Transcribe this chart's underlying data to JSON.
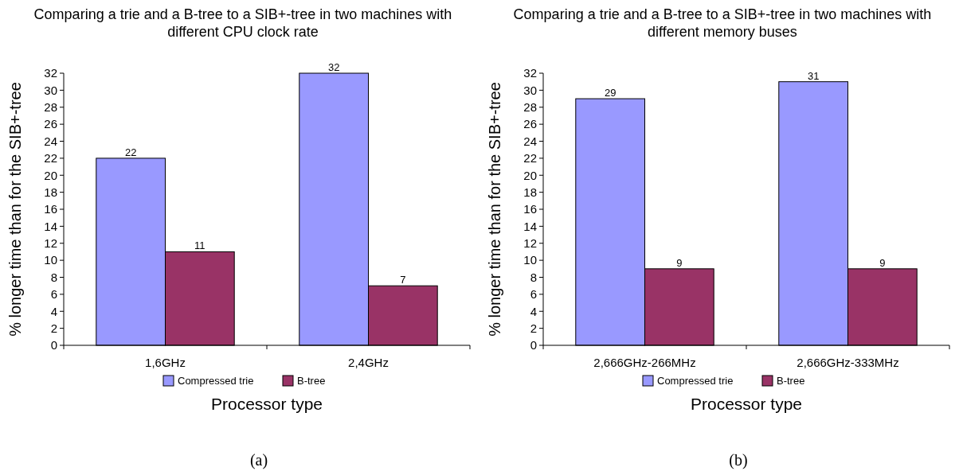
{
  "chart_data": [
    {
      "type": "bar",
      "title": "Comparing a trie and a B-tree to a SIB+-tree in two machines with different CPU clock rate",
      "xlabel": "Processor type",
      "ylabel": "% longer time than for the SIB+-tree",
      "categories": [
        "1,6GHz",
        "2,4GHz"
      ],
      "series": [
        {
          "name": "Compressed trie",
          "color": "#9999ff",
          "values": [
            22,
            32
          ]
        },
        {
          "name": "B-tree",
          "color": "#993366",
          "values": [
            11,
            7
          ]
        }
      ],
      "ylim": [
        0,
        32
      ],
      "yticks": [
        0,
        2,
        4,
        6,
        8,
        10,
        12,
        14,
        16,
        18,
        20,
        22,
        24,
        26,
        28,
        30,
        32
      ],
      "data_labels": true,
      "legend": "bottom",
      "grid": false,
      "annotations": [
        "(a)"
      ]
    },
    {
      "type": "bar",
      "title": "Comparing a trie and a B-tree to a SIB+-tree in two machines with different memory buses",
      "xlabel": "Processor type",
      "ylabel": "% longer time than for the SIB+-tree",
      "categories": [
        "2,666GHz-266MHz",
        "2,666GHz-333MHz"
      ],
      "series": [
        {
          "name": "Compressed trie",
          "color": "#9999ff",
          "values": [
            29,
            31
          ]
        },
        {
          "name": "B-tree",
          "color": "#993366",
          "values": [
            9,
            9
          ]
        }
      ],
      "ylim": [
        0,
        32
      ],
      "yticks": [
        0,
        2,
        4,
        6,
        8,
        10,
        12,
        14,
        16,
        18,
        20,
        22,
        24,
        26,
        28,
        30,
        32
      ],
      "data_labels": true,
      "legend": "bottom",
      "grid": false,
      "annotations": [
        "(b)"
      ]
    }
  ]
}
